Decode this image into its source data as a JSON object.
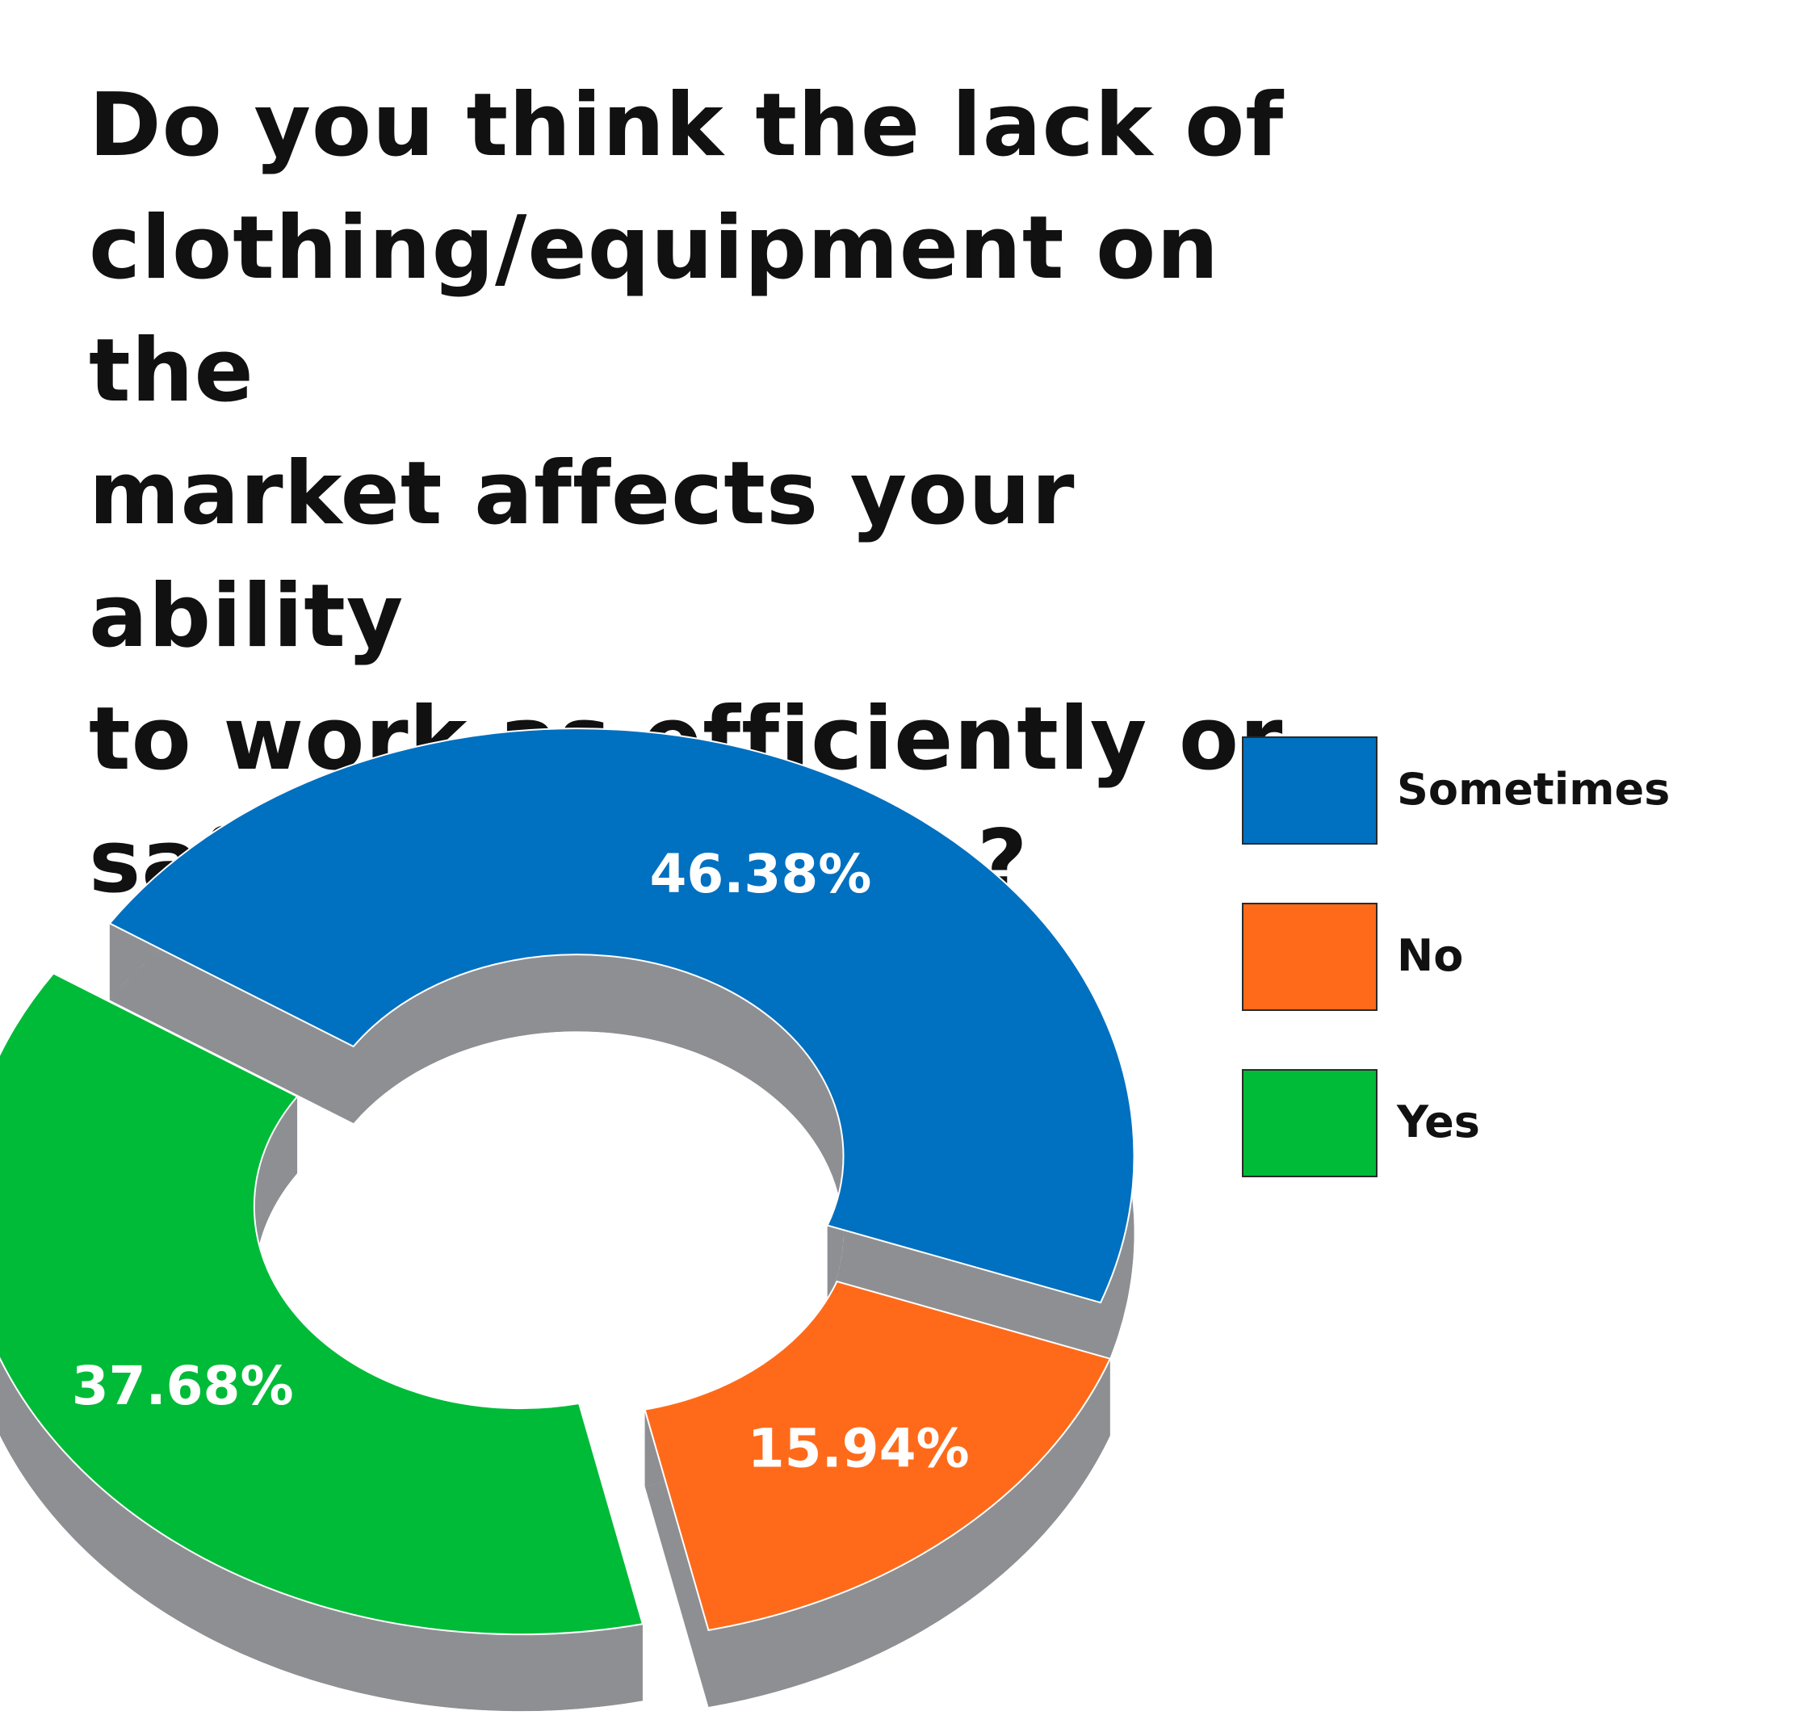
{
  "chart_data": {
    "type": "pie",
    "variant": "3d-donut",
    "title": "Do you think the lack of\nclothing/equipment on the\nmarket affects your ability\nto work as efficiently or\nsafely as possible?",
    "slices": [
      {
        "label": "Sometimes",
        "value": 46.38,
        "display": "46.38%",
        "color": "#0070C0"
      },
      {
        "label": "No",
        "value": 15.94,
        "display": "15.94%",
        "color": "#FF6A1A"
      },
      {
        "label": "Yes",
        "value": 37.68,
        "display": "37.68%",
        "color": "#00BB38"
      }
    ],
    "legend_position": "right",
    "side_color": "#8E8F93"
  },
  "legend": [
    {
      "label": "Sometimes",
      "color": "#0070C0"
    },
    {
      "label": "No",
      "color": "#FF6A1A"
    },
    {
      "label": "Yes",
      "color": "#00BB38"
    }
  ]
}
